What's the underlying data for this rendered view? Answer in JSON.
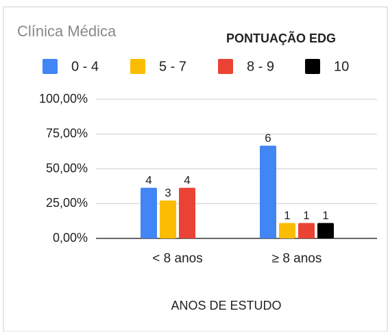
{
  "chart_data": {
    "type": "bar",
    "title": "Clínica Médica",
    "legend_title": "PONTUAÇÃO EDG",
    "x_label": "ANOS DE ESTUDO",
    "categories": [
      "< 8 anos",
      "≥ 8 anos"
    ],
    "series": [
      {
        "name": "0 - 4",
        "color": "#4285f4",
        "values": [
          36.4,
          66.7
        ],
        "counts": [
          4,
          6
        ]
      },
      {
        "name": "5 - 7",
        "color": "#fbbc04",
        "values": [
          27.3,
          11.1
        ],
        "counts": [
          3,
          1
        ]
      },
      {
        "name": "8 - 9",
        "color": "#ea4335",
        "values": [
          36.4,
          11.1
        ],
        "counts": [
          4,
          1
        ]
      },
      {
        "name": "10",
        "color": "#000000",
        "values": [
          null,
          11.1
        ],
        "counts": [
          null,
          1
        ]
      }
    ],
    "ylim": [
      0,
      100
    ],
    "yticks": [
      {
        "value": 0,
        "label": "0,00%"
      },
      {
        "value": 25,
        "label": "25,00%"
      },
      {
        "value": 50,
        "label": "50,00%"
      },
      {
        "value": 75,
        "label": "75,00%"
      },
      {
        "value": 100,
        "label": "100,00%"
      }
    ],
    "grid": true,
    "legend": "top"
  }
}
